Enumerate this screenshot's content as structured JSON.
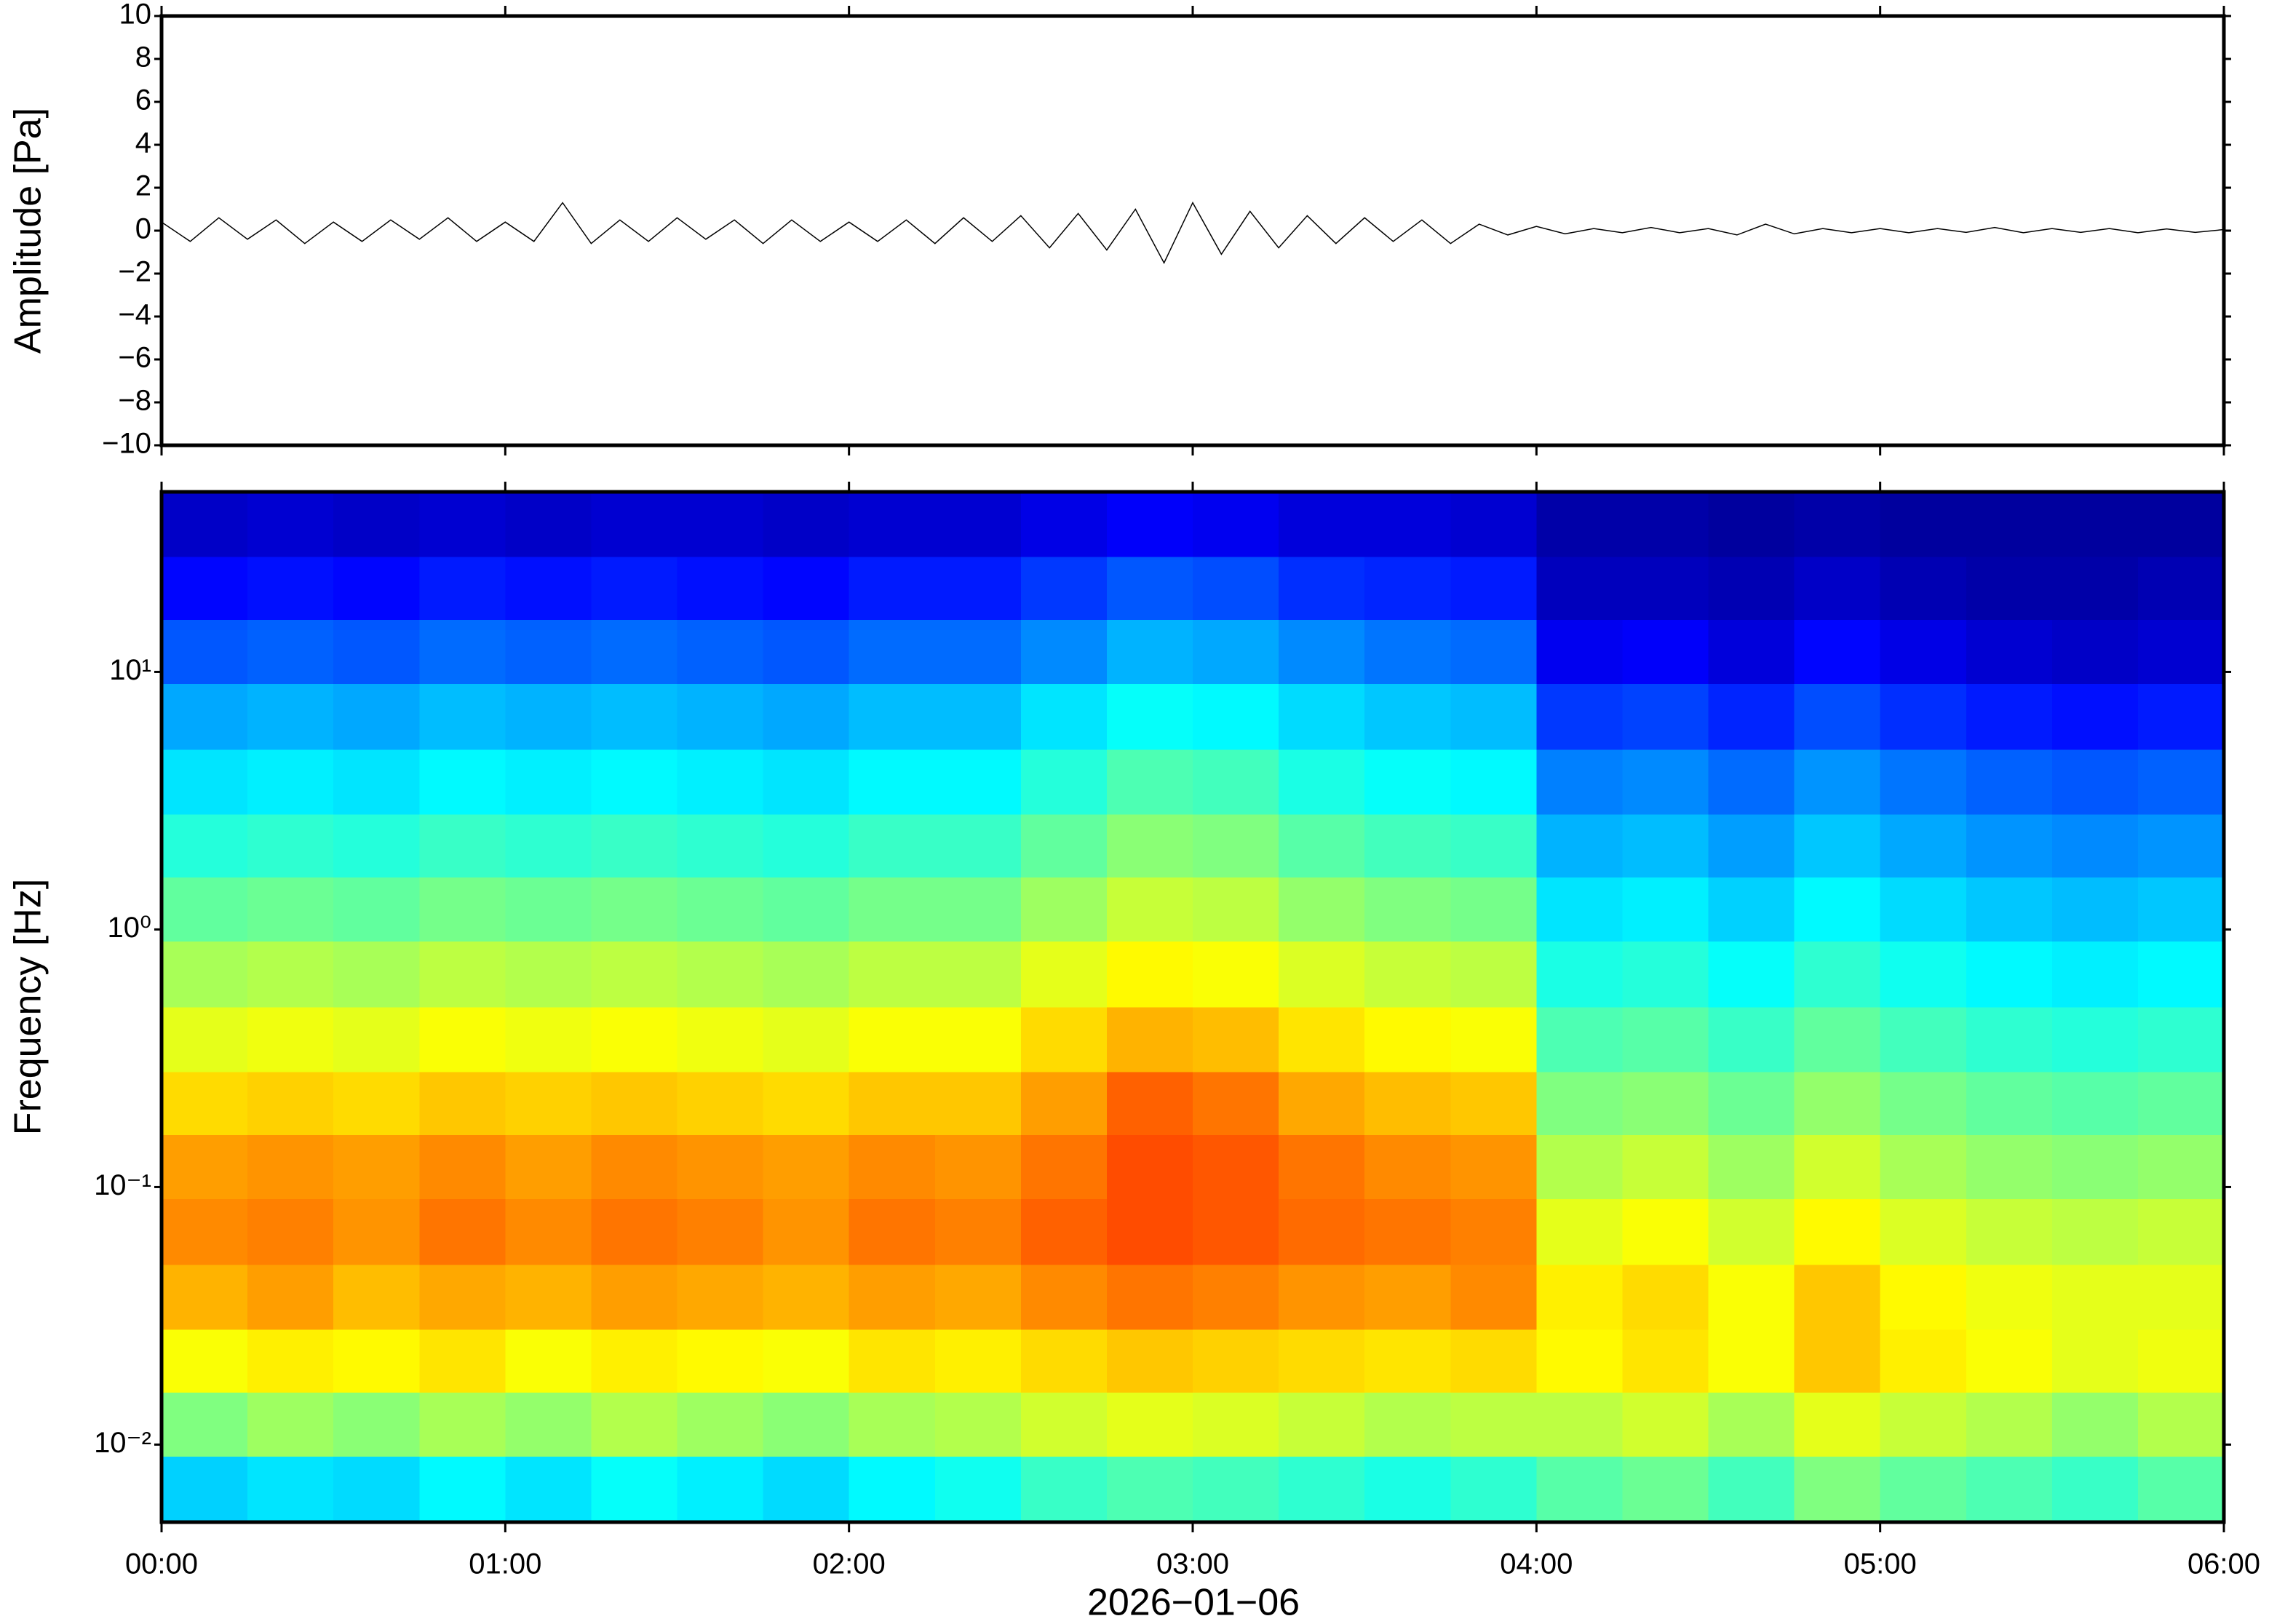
{
  "chart_data": [
    {
      "type": "line",
      "ylabel": "Amplitude [Pa]",
      "color": "#000000",
      "ylim": [
        -10,
        10
      ],
      "yticks": [
        {
          "value": -10,
          "label": "−10"
        },
        {
          "value": -8,
          "label": "−8"
        },
        {
          "value": -6,
          "label": "−6"
        },
        {
          "value": -4,
          "label": "−4"
        },
        {
          "value": -2,
          "label": "−2"
        },
        0,
        2,
        4,
        6,
        8,
        10
      ],
      "x": [
        "00:00",
        "00:05",
        "00:10",
        "00:15",
        "00:20",
        "00:25",
        "00:30",
        "00:35",
        "00:40",
        "00:45",
        "00:50",
        "00:55",
        "01:00",
        "01:05",
        "01:10",
        "01:15",
        "01:20",
        "01:25",
        "01:30",
        "01:35",
        "01:40",
        "01:45",
        "01:50",
        "01:55",
        "02:00",
        "02:05",
        "02:10",
        "02:15",
        "02:20",
        "02:25",
        "02:30",
        "02:35",
        "02:40",
        "02:45",
        "02:50",
        "02:55",
        "03:00",
        "03:05",
        "03:10",
        "03:15",
        "03:20",
        "03:25",
        "03:30",
        "03:35",
        "03:40",
        "03:45",
        "03:50",
        "03:55",
        "04:00",
        "04:05",
        "04:10",
        "04:15",
        "04:20",
        "04:25",
        "04:30",
        "04:35",
        "04:40",
        "04:45",
        "04:50",
        "04:55",
        "05:00",
        "05:05",
        "05:10",
        "05:15",
        "05:20",
        "05:25",
        "05:30",
        "05:35",
        "05:40",
        "05:45",
        "05:50",
        "05:55",
        "06:00"
      ],
      "values": [
        0.4,
        -0.5,
        0.6,
        -0.4,
        0.5,
        -0.6,
        0.4,
        -0.5,
        0.5,
        -0.4,
        0.6,
        -0.5,
        0.4,
        -0.5,
        1.3,
        -0.6,
        0.5,
        -0.5,
        0.6,
        -0.4,
        0.5,
        -0.6,
        0.5,
        -0.5,
        0.4,
        -0.5,
        0.5,
        -0.6,
        0.6,
        -0.5,
        0.7,
        -0.8,
        0.8,
        -0.9,
        1.0,
        -1.5,
        1.3,
        -1.1,
        0.9,
        -0.8,
        0.7,
        -0.6,
        0.6,
        -0.5,
        0.5,
        -0.6,
        0.3,
        -0.2,
        0.2,
        -0.15,
        0.1,
        -0.1,
        0.15,
        -0.1,
        0.1,
        -0.2,
        0.3,
        -0.15,
        0.1,
        -0.1,
        0.1,
        -0.1,
        0.1,
        -0.08,
        0.15,
        -0.1,
        0.1,
        -0.08,
        0.1,
        -0.1,
        0.08,
        -0.08,
        0.05
      ]
    },
    {
      "type": "heatmap",
      "ylabel": "Frequency [Hz]",
      "xlabel": "2026−01−06",
      "colormap": "jet",
      "zlim": [
        0,
        1
      ],
      "ylog": true,
      "xlim": [
        "00:00",
        "06:00"
      ],
      "xticks": [
        "00:00",
        "01:00",
        "02:00",
        "03:00",
        "04:00",
        "05:00",
        "06:00"
      ],
      "ylim": [
        0.005,
        50
      ],
      "yticks": [
        {
          "value": 0.01,
          "label": "10⁻²"
        },
        {
          "value": 0.1,
          "label": "10⁻¹"
        },
        {
          "value": 1,
          "label": "10⁰"
        },
        {
          "value": 10,
          "label": "10¹"
        }
      ],
      "x": [
        "00:00",
        "00:15",
        "00:30",
        "00:45",
        "01:00",
        "01:15",
        "01:30",
        "01:45",
        "02:00",
        "02:15",
        "02:30",
        "02:45",
        "03:00",
        "03:15",
        "03:30",
        "03:45",
        "04:00",
        "04:15",
        "04:30",
        "04:45",
        "05:00",
        "05:15",
        "05:30",
        "05:45"
      ],
      "ybins": [
        0.005,
        0.009,
        0.016,
        0.028,
        0.05,
        0.09,
        0.16,
        0.28,
        0.5,
        0.9,
        1.6,
        2.8,
        5,
        9,
        16,
        28,
        50
      ],
      "values": [
        [
          0.33,
          0.35,
          0.34,
          0.37,
          0.35,
          0.38,
          0.36,
          0.34,
          0.37,
          0.39,
          0.43,
          0.45,
          0.44,
          0.42,
          0.4,
          0.42,
          0.46,
          0.48,
          0.44,
          0.5,
          0.47,
          0.45,
          0.43,
          0.46
        ],
        [
          0.5,
          0.53,
          0.51,
          0.54,
          0.52,
          0.55,
          0.53,
          0.51,
          0.54,
          0.55,
          0.58,
          0.6,
          0.59,
          0.57,
          0.55,
          0.56,
          0.56,
          0.58,
          0.54,
          0.6,
          0.57,
          0.55,
          0.52,
          0.55
        ],
        [
          0.62,
          0.64,
          0.63,
          0.65,
          0.62,
          0.64,
          0.63,
          0.62,
          0.65,
          0.64,
          0.66,
          0.68,
          0.67,
          0.66,
          0.65,
          0.66,
          0.63,
          0.65,
          0.62,
          0.68,
          0.64,
          0.62,
          0.6,
          0.61
        ],
        [
          0.7,
          0.72,
          0.69,
          0.71,
          0.7,
          0.72,
          0.71,
          0.7,
          0.72,
          0.71,
          0.74,
          0.76,
          0.75,
          0.73,
          0.72,
          0.74,
          0.64,
          0.66,
          0.62,
          0.68,
          0.63,
          0.61,
          0.6,
          0.6
        ],
        [
          0.74,
          0.75,
          0.73,
          0.76,
          0.74,
          0.76,
          0.75,
          0.73,
          0.76,
          0.75,
          0.78,
          0.8,
          0.79,
          0.77,
          0.76,
          0.75,
          0.6,
          0.62,
          0.58,
          0.63,
          0.59,
          0.57,
          0.56,
          0.57
        ],
        [
          0.72,
          0.73,
          0.72,
          0.74,
          0.72,
          0.74,
          0.73,
          0.72,
          0.74,
          0.73,
          0.76,
          0.8,
          0.79,
          0.76,
          0.74,
          0.73,
          0.55,
          0.57,
          0.53,
          0.58,
          0.54,
          0.52,
          0.51,
          0.52
        ],
        [
          0.66,
          0.67,
          0.66,
          0.68,
          0.67,
          0.68,
          0.67,
          0.66,
          0.68,
          0.68,
          0.72,
          0.78,
          0.76,
          0.71,
          0.69,
          0.68,
          0.5,
          0.51,
          0.48,
          0.52,
          0.49,
          0.47,
          0.46,
          0.47
        ],
        [
          0.6,
          0.61,
          0.6,
          0.62,
          0.61,
          0.62,
          0.61,
          0.6,
          0.62,
          0.62,
          0.66,
          0.7,
          0.69,
          0.65,
          0.63,
          0.62,
          0.45,
          0.46,
          0.43,
          0.47,
          0.44,
          0.42,
          0.41,
          0.42
        ],
        [
          0.54,
          0.55,
          0.54,
          0.56,
          0.55,
          0.56,
          0.55,
          0.54,
          0.56,
          0.56,
          0.6,
          0.63,
          0.62,
          0.59,
          0.57,
          0.56,
          0.4,
          0.41,
          0.38,
          0.42,
          0.39,
          0.37,
          0.36,
          0.37
        ],
        [
          0.47,
          0.48,
          0.47,
          0.49,
          0.48,
          0.49,
          0.48,
          0.47,
          0.49,
          0.49,
          0.53,
          0.57,
          0.56,
          0.52,
          0.5,
          0.49,
          0.35,
          0.36,
          0.33,
          0.37,
          0.34,
          0.32,
          0.31,
          0.32
        ],
        [
          0.41,
          0.42,
          0.41,
          0.43,
          0.42,
          0.43,
          0.42,
          0.41,
          0.43,
          0.43,
          0.47,
          0.51,
          0.5,
          0.46,
          0.44,
          0.43,
          0.3,
          0.31,
          0.28,
          0.32,
          0.29,
          0.27,
          0.26,
          0.27
        ],
        [
          0.35,
          0.36,
          0.35,
          0.37,
          0.36,
          0.37,
          0.36,
          0.35,
          0.37,
          0.37,
          0.41,
          0.45,
          0.44,
          0.4,
          0.38,
          0.37,
          0.25,
          0.26,
          0.23,
          0.27,
          0.24,
          0.22,
          0.21,
          0.22
        ],
        [
          0.29,
          0.3,
          0.29,
          0.31,
          0.3,
          0.31,
          0.3,
          0.29,
          0.31,
          0.31,
          0.35,
          0.38,
          0.37,
          0.34,
          0.32,
          0.31,
          0.18,
          0.19,
          0.16,
          0.2,
          0.17,
          0.15,
          0.14,
          0.15
        ],
        [
          0.21,
          0.22,
          0.21,
          0.23,
          0.22,
          0.23,
          0.22,
          0.21,
          0.23,
          0.23,
          0.26,
          0.3,
          0.29,
          0.26,
          0.24,
          0.23,
          0.11,
          0.12,
          0.09,
          0.13,
          0.1,
          0.08,
          0.07,
          0.08
        ],
        [
          0.13,
          0.14,
          0.13,
          0.15,
          0.14,
          0.15,
          0.14,
          0.13,
          0.15,
          0.15,
          0.18,
          0.21,
          0.2,
          0.17,
          0.16,
          0.15,
          0.06,
          0.06,
          0.05,
          0.07,
          0.05,
          0.04,
          0.04,
          0.05
        ],
        [
          0.07,
          0.08,
          0.07,
          0.08,
          0.07,
          0.08,
          0.08,
          0.07,
          0.08,
          0.08,
          0.1,
          0.12,
          0.11,
          0.09,
          0.09,
          0.08,
          0.04,
          0.04,
          0.03,
          0.04,
          0.03,
          0.03,
          0.03,
          0.03
        ]
      ]
    }
  ]
}
